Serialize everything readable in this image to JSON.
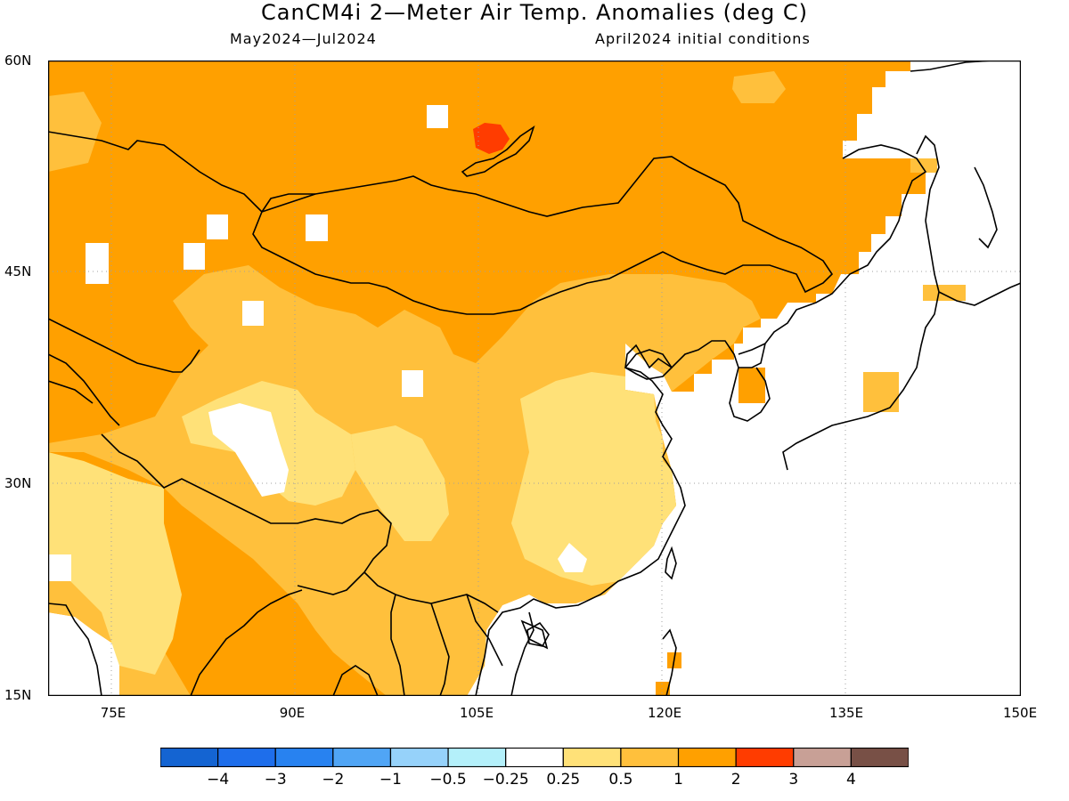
{
  "header": {
    "title": "CanCM4i 2—Meter Air Temp. Anomalies (deg C)",
    "period": "May2024—Jul2024",
    "init": "April2024 initial conditions"
  },
  "axes": {
    "lat_labels": [
      "60N",
      "45N",
      "30N",
      "15N"
    ],
    "lon_labels": [
      "75E",
      "90E",
      "105E",
      "120E",
      "135E",
      "150E"
    ]
  },
  "legend": {
    "labels": [
      "−4",
      "−3",
      "−2",
      "−1",
      "−0.5",
      "−0.25",
      "0.25",
      "0.5",
      "1",
      "2",
      "3",
      "4"
    ],
    "colors": [
      "#1464d2",
      "#1e6eeb",
      "#2882f0",
      "#50a5f5",
      "#96d2fa",
      "#b4f0fa",
      "#ffffff",
      "#ffe178",
      "#ffc03c",
      "#ffa000",
      "#ff3c00",
      "#c8a096",
      "#785046"
    ]
  },
  "map": {
    "colors": {
      "orange": "#ffa000",
      "light_orange": "#ffc03c",
      "yellow": "#ffe178",
      "red": "#ff3c00",
      "white": "#ffffff",
      "coast": "#000000",
      "grid": "#a0a0a0"
    }
  }
}
